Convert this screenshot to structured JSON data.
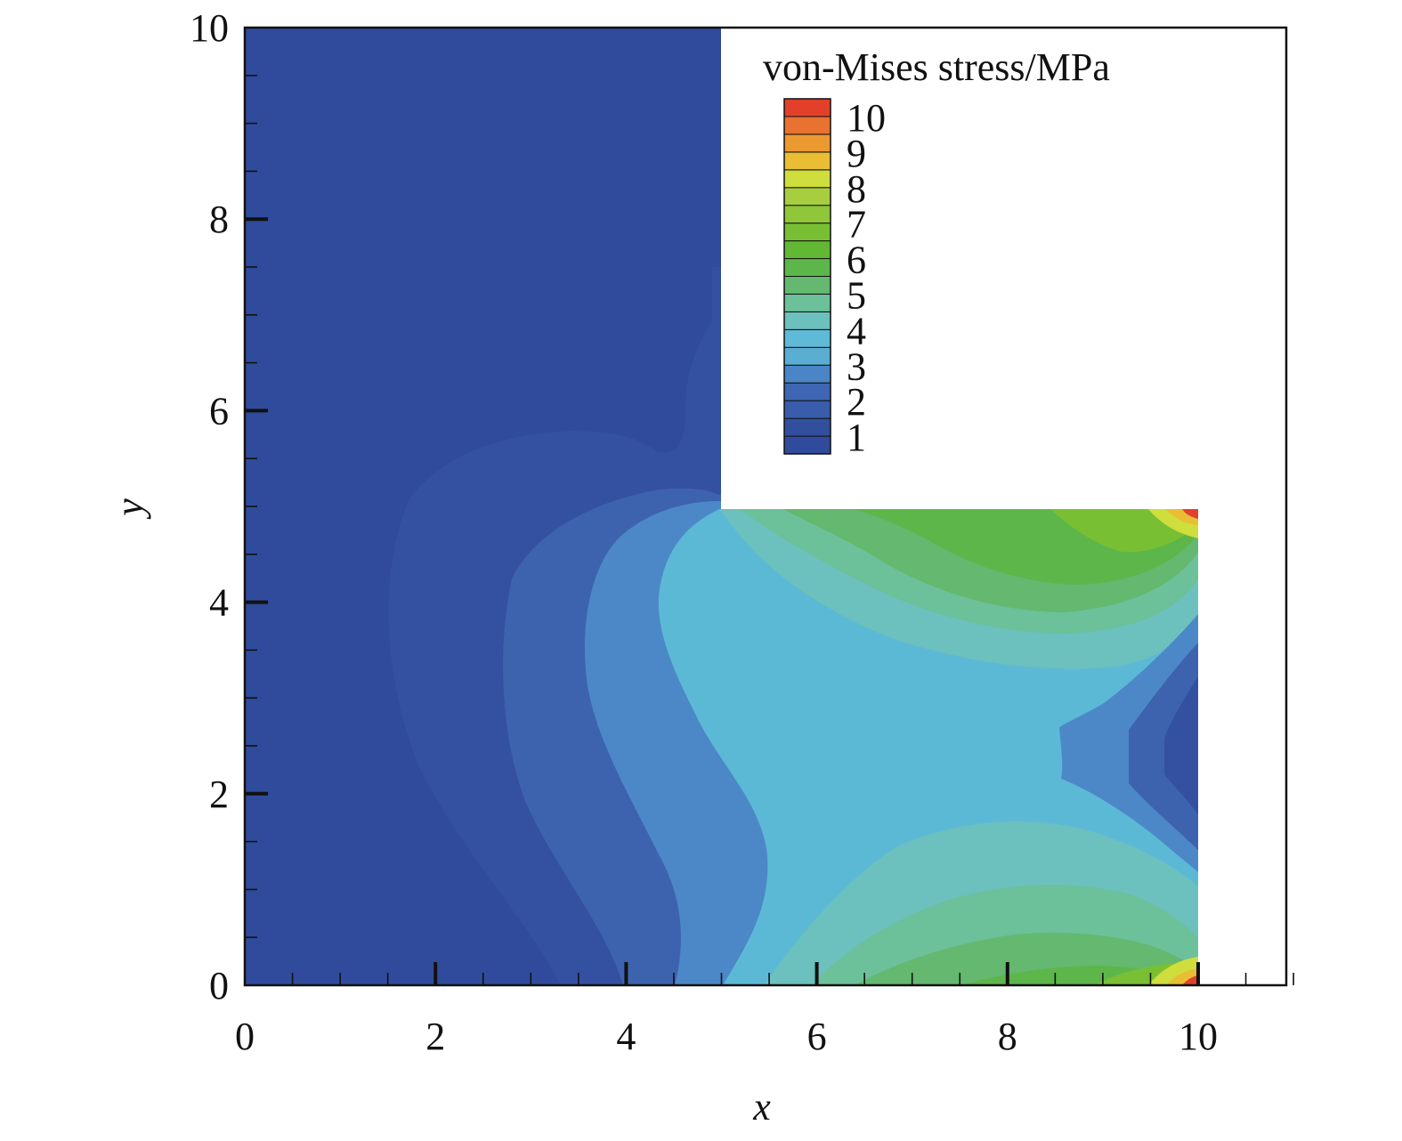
{
  "chart_data": {
    "type": "heatmap",
    "title": "",
    "xlabel": "x",
    "ylabel": "y",
    "xlim": [
      0,
      11
    ],
    "ylim": [
      0,
      10
    ],
    "x_ticks": [
      0,
      2,
      4,
      6,
      8,
      10
    ],
    "y_ticks": [
      0,
      2,
      4,
      6,
      8,
      10
    ],
    "x_tick_labels": [
      "0",
      "2",
      "4",
      "6",
      "8",
      "10"
    ],
    "y_tick_labels": [
      "0",
      "2",
      "4",
      "6",
      "8",
      "10"
    ],
    "grid": false,
    "domain_shape": "L-shaped: x in [0,5] for y in [0,10]; x in [5,10] for y in [0,5]",
    "colorbar": {
      "title": "von-Mises stress/MPa",
      "placement": "top-right",
      "min": 0.5,
      "max": 10.5,
      "label_values": [
        1,
        2,
        3,
        4,
        5,
        6,
        7,
        8,
        9,
        10
      ],
      "labels": [
        "1",
        "2",
        "3",
        "4",
        "5",
        "6",
        "7",
        "8",
        "9",
        "10"
      ],
      "levels": [
        0.5,
        1,
        1.5,
        2,
        2.5,
        3,
        3.5,
        4,
        4.5,
        5,
        5.5,
        6,
        6.5,
        7,
        7.5,
        8,
        8.5,
        9,
        9.5,
        10,
        10.5
      ],
      "colors": [
        "#304b9b",
        "#324f9e",
        "#3a5dab",
        "#3e66b2",
        "#4a86c6",
        "#5aaed2",
        "#5fbad8",
        "#6cc0bd",
        "#6cc09a",
        "#64b86f",
        "#5db64a",
        "#62b735",
        "#78bf34",
        "#8fc63a",
        "#a6ce3f",
        "#cfdd3d",
        "#e9be34",
        "#eb9931",
        "#e8722f",
        "#e2402b"
      ]
    }
  }
}
